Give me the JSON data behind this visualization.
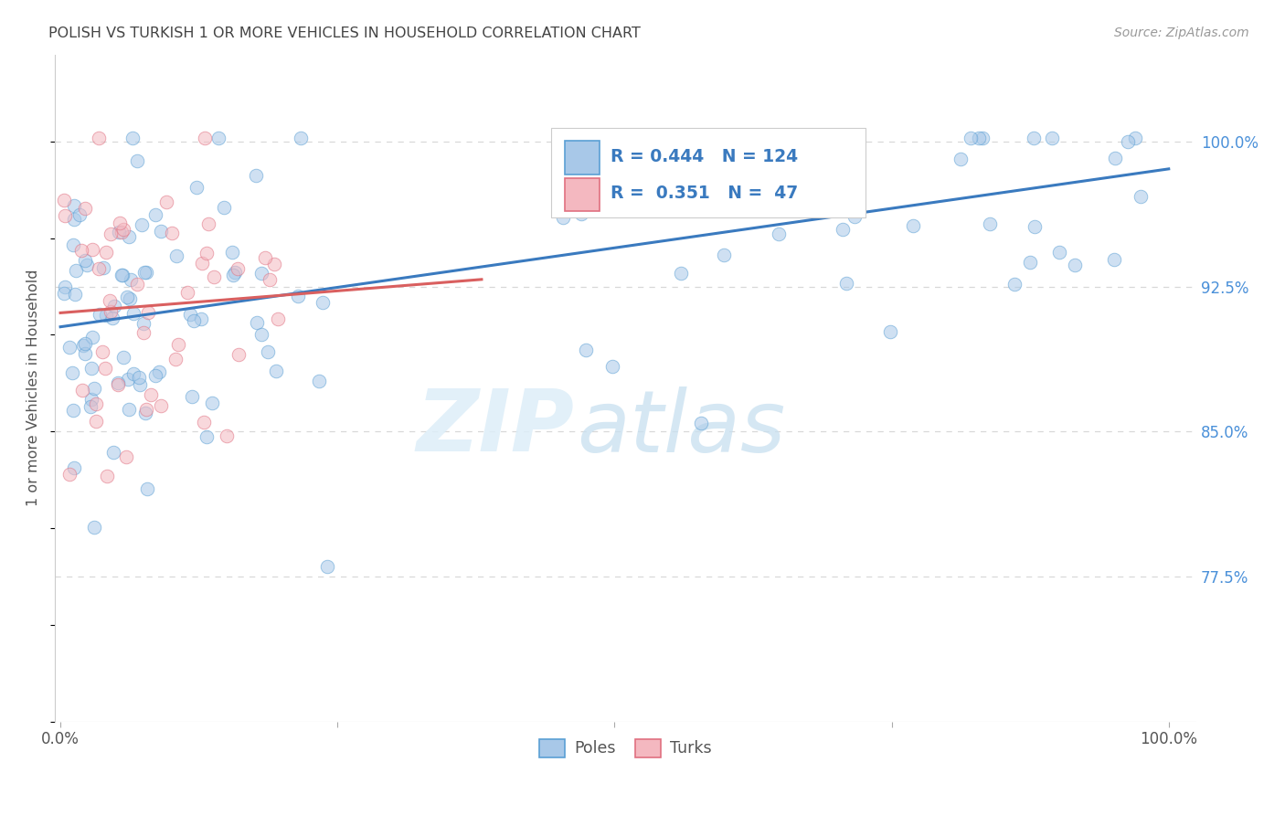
{
  "title": "POLISH VS TURKISH 1 OR MORE VEHICLES IN HOUSEHOLD CORRELATION CHART",
  "source": "Source: ZipAtlas.com",
  "ylabel": "1 or more Vehicles in Household",
  "poles_color": "#a8c8e8",
  "poles_edge_color": "#5a9fd4",
  "turks_color": "#f4b8c0",
  "turks_edge_color": "#e07080",
  "trend_poles_color": "#3a7abf",
  "trend_turks_color": "#d95f5f",
  "R_poles": 0.444,
  "N_poles": 124,
  "R_turks": 0.351,
  "N_turks": 47,
  "watermark_zip": "ZIP",
  "watermark_atlas": "atlas",
  "background_color": "#ffffff",
  "grid_color": "#d8d8d8",
  "text_color_blue": "#3a7abf",
  "ytick_color": "#4a90d9",
  "title_color": "#444444",
  "source_color": "#999999",
  "ylabel_color": "#555555"
}
